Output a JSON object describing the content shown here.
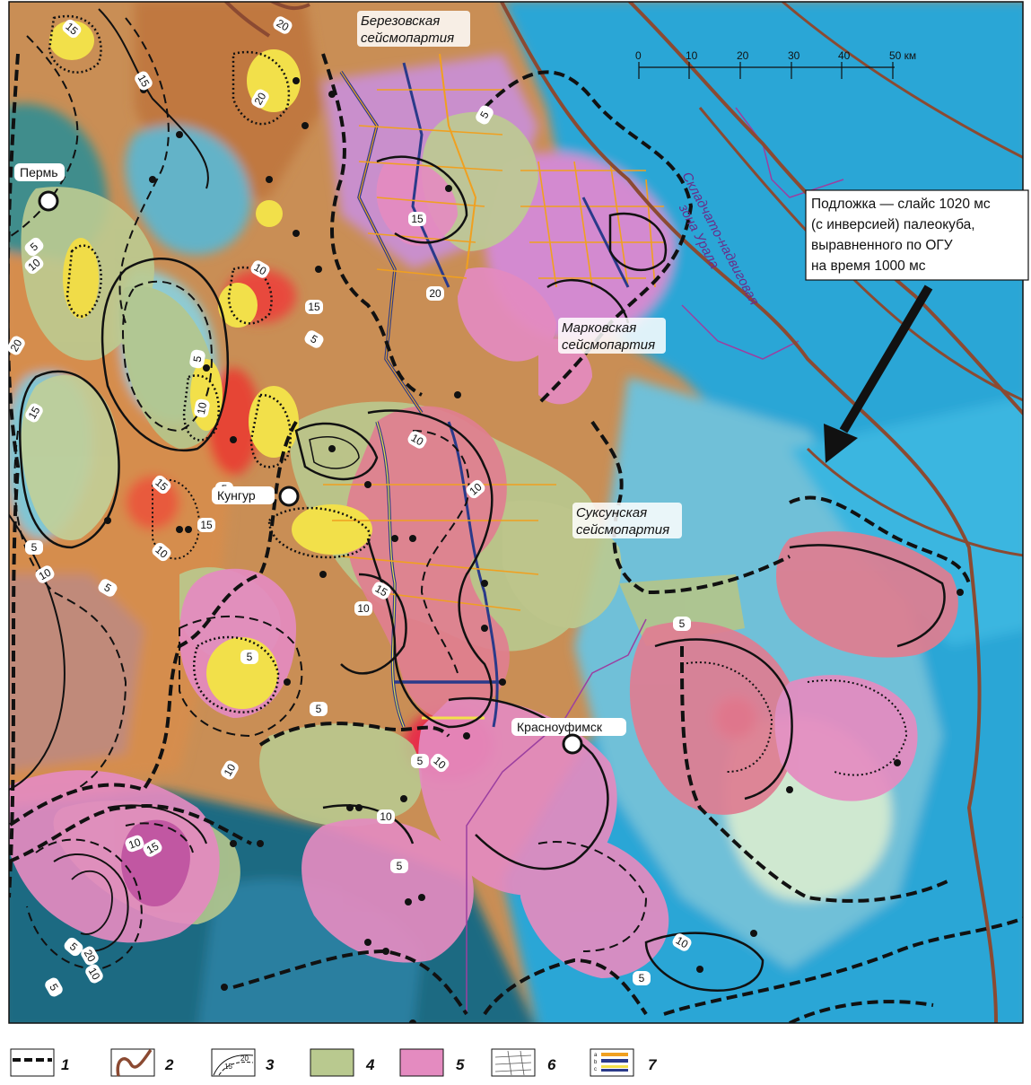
{
  "cities": [
    {
      "name": "Пермь"
    },
    {
      "name": "Кунгур"
    },
    {
      "name": "Красноуфимск"
    }
  ],
  "seismic_parties": [
    {
      "line1": "Березовская",
      "line2": "сейсмопартия"
    },
    {
      "line1": "Марковская",
      "line2": "сейсмопартия"
    },
    {
      "line1": "Суксунская",
      "line2": "сейсмопартия"
    }
  ],
  "fold_zone": {
    "line1": "Складчато-надвиговая",
    "line2": "зона Урала"
  },
  "callout": {
    "lines": [
      "Подложка — слайс 1020 мс",
      "(с инверсией) палеокуба,",
      "выравненного по ОГУ",
      "на время 1000 мс"
    ]
  },
  "scale_bar": {
    "ticks": [
      "0",
      "10",
      "20",
      "30",
      "40",
      "50 км"
    ]
  },
  "contour_labels": [
    "15",
    "20",
    "15",
    "20",
    "5",
    "10",
    "5",
    "20",
    "15",
    "5",
    "10",
    "5",
    "10",
    "15",
    "5",
    "15",
    "10",
    "15",
    "5",
    "10",
    "15",
    "20",
    "5",
    "10",
    "10",
    "15",
    "10",
    "5",
    "5",
    "10",
    "5",
    "10",
    "10",
    "5",
    "10",
    "15",
    "5",
    "20",
    "10",
    "5",
    "10",
    "5",
    "5"
  ],
  "legend": [
    {
      "number": "1",
      "icon": "thick-dashed-boundary-line"
    },
    {
      "number": "2",
      "icon": "brown-outline-curve"
    },
    {
      "number": "3",
      "icon": "labeled-isoline-contours"
    },
    {
      "number": "4",
      "icon": "olive-green-fill"
    },
    {
      "number": "5",
      "icon": "pink-fill"
    },
    {
      "number": "6",
      "icon": "seismic-profile-grid"
    },
    {
      "number": "7",
      "icon": "abc-colored-line-bars"
    }
  ],
  "colors": {
    "green_zone": "#b9c98f",
    "pink_zone": "#e48bc0",
    "orange_background": "#d99a55",
    "yellow_spots": "#f2e04a",
    "blue_background": "#2aa6d6",
    "dark_teal": "#1d6b82",
    "red_spots": "#e84a3c",
    "brown_boundary": "#8b4a32",
    "purple_line": "#9b3fa0",
    "profile_orange": "#f0a020",
    "profile_navy": "#2a3a8a"
  }
}
